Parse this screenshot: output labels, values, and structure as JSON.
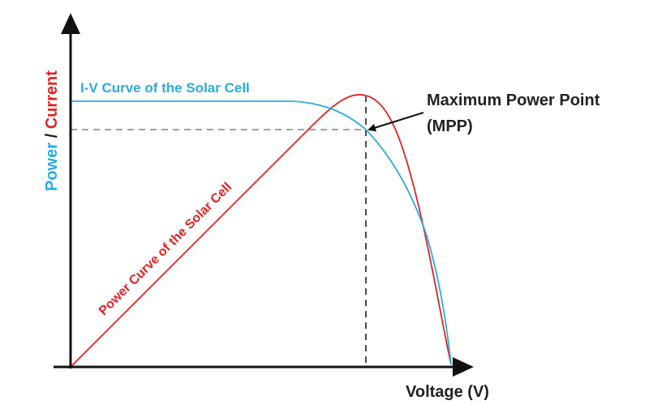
{
  "axes": {
    "x_label": "Voltage (V)",
    "y_label_power": "Power",
    "y_label_separator": " / ",
    "y_label_current": "Current"
  },
  "curves": {
    "iv_label": "I-V Curve of the Solar Cell",
    "power_label": "Power Curve of the Solar Cell"
  },
  "mpp": {
    "line1": "Maximum Power Point",
    "line2": "(MPP)"
  },
  "colors": {
    "iv_curve": "#29abe2",
    "power_curve": "#e02424",
    "axes": "#111111",
    "guide": "#555555"
  }
}
